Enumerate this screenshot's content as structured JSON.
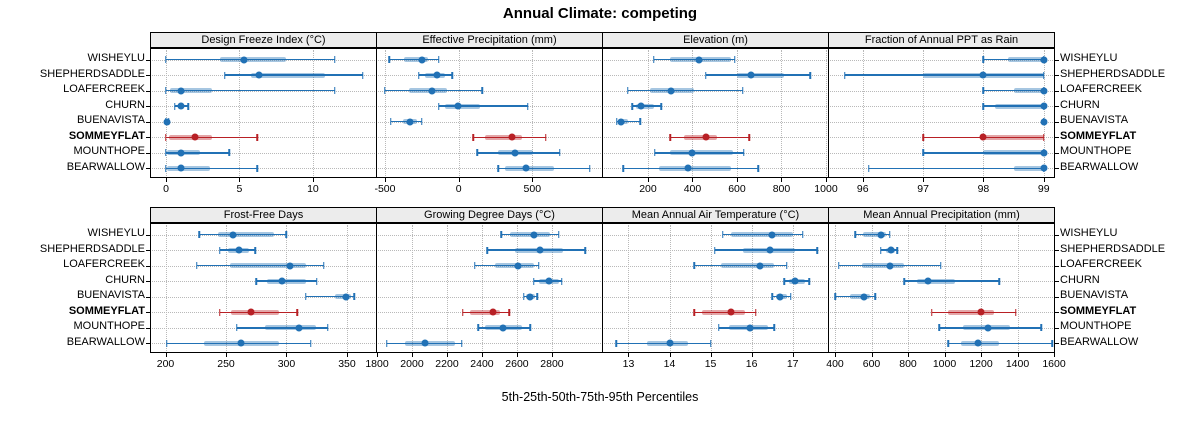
{
  "title": "Annual Climate: competing",
  "caption": "5th-25th-50th-75th-95th Percentiles",
  "sites": [
    "WISHEYLU",
    "SHEPHERDSADDLE",
    "LOAFERCREEK",
    "CHURN",
    "BUENAVISTA",
    "SOMMEYFLAT",
    "MOUNTHOPE",
    "BEARWALLOW"
  ],
  "highlight_site": "SOMMEYFLAT",
  "colors": {
    "series": "#2171b5",
    "highlight": "#b82025",
    "strip_bg": "#ececec",
    "grid": "#b9b9b9"
  },
  "chart_data": [
    {
      "type": "dotplot-percentiles",
      "panel": "Design Freeze Index (°C)",
      "row": 0,
      "col": 0,
      "xlim": [
        -1.02,
        14.29
      ],
      "ticks": [
        0,
        5,
        10
      ],
      "value_order": [
        "p5",
        "p25",
        "p50",
        "p75",
        "p95"
      ],
      "series": [
        {
          "site": "WISHEYLU",
          "values": [
            0,
            3.7,
            5.3,
            8.2,
            11.5
          ]
        },
        {
          "site": "SHEPHERDSADDLE",
          "values": [
            4.0,
            5.8,
            6.3,
            10.8,
            13.4
          ]
        },
        {
          "site": "LOAFERCREEK",
          "values": [
            0,
            0.3,
            1.0,
            3.1,
            11.5
          ]
        },
        {
          "site": "CHURN",
          "values": [
            0.6,
            0.8,
            1.0,
            1.2,
            1.5
          ]
        },
        {
          "site": "BUENAVISTA",
          "values": [
            0,
            0,
            0.05,
            0.1,
            0.2
          ]
        },
        {
          "site": "SOMMEYFLAT",
          "values": [
            0,
            0.2,
            2.0,
            3.1,
            6.2
          ]
        },
        {
          "site": "MOUNTHOPE",
          "values": [
            0,
            0.1,
            1.0,
            2.3,
            4.3
          ]
        },
        {
          "site": "BEARWALLOW",
          "values": [
            0,
            0.1,
            1.0,
            3.0,
            6.2
          ]
        }
      ]
    },
    {
      "type": "dotplot-percentiles",
      "panel": "Effective Precipitation (mm)",
      "row": 0,
      "col": 1,
      "xlim": [
        -554,
        973
      ],
      "ticks": [
        -500,
        0,
        500
      ],
      "value_order": [
        "p5",
        "p25",
        "p50",
        "p75",
        "p95"
      ],
      "series": [
        {
          "site": "WISHEYLU",
          "values": [
            -470,
            -370,
            -250,
            -205,
            -135
          ]
        },
        {
          "site": "SHEPHERDSADDLE",
          "values": [
            -270,
            -225,
            -145,
            -90,
            -43
          ]
        },
        {
          "site": "LOAFERCREEK",
          "values": [
            -500,
            -340,
            -180,
            -80,
            160
          ]
        },
        {
          "site": "CHURN",
          "values": [
            -135,
            -90,
            -7,
            145,
            470
          ]
        },
        {
          "site": "BUENAVISTA",
          "values": [
            -460,
            -380,
            -330,
            -280,
            -250
          ]
        },
        {
          "site": "SOMMEYFLAT",
          "values": [
            100,
            180,
            365,
            430,
            590
          ]
        },
        {
          "site": "MOUNTHOPE",
          "values": [
            125,
            270,
            385,
            505,
            685
          ]
        },
        {
          "site": "BEARWALLOW",
          "values": [
            270,
            315,
            460,
            650,
            890
          ]
        }
      ]
    },
    {
      "type": "dotplot-percentiles",
      "panel": "Elevation (m)",
      "row": 0,
      "col": 2,
      "xlim": [
        -2,
        1009
      ],
      "ticks": [
        200,
        400,
        600,
        800,
        1000
      ],
      "value_order": [
        "p5",
        "p25",
        "p50",
        "p75",
        "p95"
      ],
      "series": [
        {
          "site": "WISHEYLU",
          "values": [
            225,
            300,
            430,
            575,
            590
          ]
        },
        {
          "site": "SHEPHERDSADDLE",
          "values": [
            460,
            600,
            665,
            810,
            930
          ]
        },
        {
          "site": "LOAFERCREEK",
          "values": [
            110,
            210,
            305,
            405,
            625
          ]
        },
        {
          "site": "CHURN",
          "values": [
            130,
            145,
            167,
            225,
            260
          ]
        },
        {
          "site": "BUENAVISTA",
          "values": [
            60,
            65,
            80,
            110,
            165
          ]
        },
        {
          "site": "SOMMEYFLAT",
          "values": [
            300,
            360,
            460,
            510,
            655
          ]
        },
        {
          "site": "MOUNTHOPE",
          "values": [
            230,
            300,
            400,
            580,
            630
          ]
        },
        {
          "site": "BEARWALLOW",
          "values": [
            90,
            250,
            380,
            575,
            695
          ]
        }
      ]
    },
    {
      "type": "dotplot-percentiles",
      "panel": "Fraction of Annual PPT as Rain",
      "row": 0,
      "col": 3,
      "xlim": [
        95.44,
        99.17
      ],
      "ticks": [
        96,
        97,
        98,
        99
      ],
      "value_order": [
        "p5",
        "p25",
        "p50",
        "p75",
        "p95"
      ],
      "series": [
        {
          "site": "WISHEYLU",
          "values": [
            98,
            98.4,
            99,
            99,
            99
          ]
        },
        {
          "site": "SHEPHERDSADDLE",
          "values": [
            95.7,
            97,
            98,
            99,
            99
          ]
        },
        {
          "site": "LOAFERCREEK",
          "values": [
            98,
            98.5,
            99,
            99,
            99
          ]
        },
        {
          "site": "CHURN",
          "values": [
            98,
            98.2,
            99,
            99,
            99
          ]
        },
        {
          "site": "BUENAVISTA",
          "values": [
            99,
            99,
            99,
            99,
            99
          ]
        },
        {
          "site": "SOMMEYFLAT",
          "values": [
            97,
            98,
            98,
            99,
            99
          ]
        },
        {
          "site": "MOUNTHOPE",
          "values": [
            97,
            98,
            99,
            99,
            99
          ]
        },
        {
          "site": "BEARWALLOW",
          "values": [
            96.1,
            98.5,
            99,
            99,
            99
          ]
        }
      ]
    },
    {
      "type": "dotplot-percentiles",
      "panel": "Frost-Free Days",
      "row": 1,
      "col": 0,
      "xlim": [
        188,
        374
      ],
      "ticks": [
        200,
        250,
        300,
        350
      ],
      "value_order": [
        "p5",
        "p25",
        "p50",
        "p75",
        "p95"
      ],
      "series": [
        {
          "site": "WISHEYLU",
          "values": [
            228,
            243,
            256,
            290,
            300
          ]
        },
        {
          "site": "SHEPHERDSADDLE",
          "values": [
            245,
            252,
            261,
            269,
            274
          ]
        },
        {
          "site": "LOAFERCREEK",
          "values": [
            226,
            253,
            303,
            316,
            331
          ]
        },
        {
          "site": "CHURN",
          "values": [
            275,
            284,
            296,
            316,
            325
          ]
        },
        {
          "site": "BUENAVISTA",
          "values": [
            316,
            340,
            349,
            353,
            356
          ]
        },
        {
          "site": "SOMMEYFLAT",
          "values": [
            245,
            254,
            271,
            294,
            309
          ]
        },
        {
          "site": "MOUNTHOPE",
          "values": [
            259,
            282,
            310,
            324,
            334
          ]
        },
        {
          "site": "BEARWALLOW",
          "values": [
            201,
            232,
            262,
            294,
            320
          ]
        }
      ]
    },
    {
      "type": "dotplot-percentiles",
      "panel": "Growing Degree Days (°C)",
      "row": 1,
      "col": 1,
      "xlim": [
        1800,
        3086
      ],
      "ticks": [
        1800,
        2000,
        2200,
        2400,
        2600,
        2800
      ],
      "value_order": [
        "p5",
        "p25",
        "p50",
        "p75",
        "p95"
      ],
      "series": [
        {
          "site": "WISHEYLU",
          "values": [
            2510,
            2560,
            2700,
            2790,
            2840
          ]
        },
        {
          "site": "SHEPHERDSADDLE",
          "values": [
            2430,
            2590,
            2730,
            2865,
            2990
          ]
        },
        {
          "site": "LOAFERCREEK",
          "values": [
            2360,
            2475,
            2605,
            2695,
            2725
          ]
        },
        {
          "site": "CHURN",
          "values": [
            2695,
            2725,
            2785,
            2840,
            2855
          ]
        },
        {
          "site": "BUENAVISTA",
          "values": [
            2640,
            2650,
            2675,
            2705,
            2715
          ]
        },
        {
          "site": "SOMMEYFLAT",
          "values": [
            2290,
            2330,
            2465,
            2505,
            2555
          ]
        },
        {
          "site": "MOUNTHOPE",
          "values": [
            2380,
            2420,
            2520,
            2630,
            2675
          ]
        },
        {
          "site": "BEARWALLOW",
          "values": [
            1855,
            1960,
            2075,
            2245,
            2285
          ]
        }
      ]
    },
    {
      "type": "dotplot-percentiles",
      "panel": "Mean Annual Air Temperature (°C)",
      "row": 1,
      "col": 2,
      "xlim": [
        12.38,
        17.86
      ],
      "ticks": [
        13,
        14,
        15,
        16,
        17
      ],
      "value_order": [
        "p5",
        "p25",
        "p50",
        "p75",
        "p95"
      ],
      "series": [
        {
          "site": "WISHEYLU",
          "values": [
            15.3,
            15.5,
            16.5,
            17.0,
            17.25
          ]
        },
        {
          "site": "SHEPHERDSADDLE",
          "values": [
            15.1,
            15.8,
            16.45,
            17.05,
            17.6
          ]
        },
        {
          "site": "LOAFERCREEK",
          "values": [
            14.6,
            15.25,
            16.2,
            16.55,
            16.85
          ]
        },
        {
          "site": "CHURN",
          "values": [
            16.8,
            16.9,
            17.05,
            17.3,
            17.4
          ]
        },
        {
          "site": "BUENAVISTA",
          "values": [
            16.5,
            16.6,
            16.7,
            16.85,
            16.95
          ]
        },
        {
          "site": "SOMMEYFLAT",
          "values": [
            14.6,
            14.8,
            15.5,
            15.85,
            16.1
          ]
        },
        {
          "site": "MOUNTHOPE",
          "values": [
            15.2,
            15.45,
            15.95,
            16.4,
            16.55
          ]
        },
        {
          "site": "BEARWALLOW",
          "values": [
            12.7,
            13.45,
            14.0,
            14.45,
            15.0
          ]
        }
      ]
    },
    {
      "type": "dotplot-percentiles",
      "panel": "Mean Annual Precipitation (mm)",
      "row": 1,
      "col": 3,
      "xlim": [
        367,
        1600
      ],
      "ticks": [
        400,
        600,
        800,
        1000,
        1200,
        1400,
        1600
      ],
      "value_order": [
        "p5",
        "p25",
        "p50",
        "p75",
        "p95"
      ],
      "series": [
        {
          "site": "WISHEYLU",
          "values": [
            510,
            555,
            650,
            680,
            700
          ]
        },
        {
          "site": "SHEPHERDSADDLE",
          "values": [
            650,
            680,
            705,
            730,
            740
          ]
        },
        {
          "site": "LOAFERCREEK",
          "values": [
            420,
            550,
            700,
            780,
            980
          ]
        },
        {
          "site": "CHURN",
          "values": [
            780,
            850,
            910,
            1060,
            1300
          ]
        },
        {
          "site": "BUENAVISTA",
          "values": [
            400,
            480,
            560,
            590,
            620
          ]
        },
        {
          "site": "SOMMEYFLAT",
          "values": [
            930,
            1020,
            1200,
            1270,
            1390
          ]
        },
        {
          "site": "MOUNTHOPE",
          "values": [
            970,
            1100,
            1240,
            1360,
            1530
          ]
        },
        {
          "site": "BEARWALLOW",
          "values": [
            1020,
            1090,
            1185,
            1300,
            1590
          ]
        }
      ]
    }
  ]
}
